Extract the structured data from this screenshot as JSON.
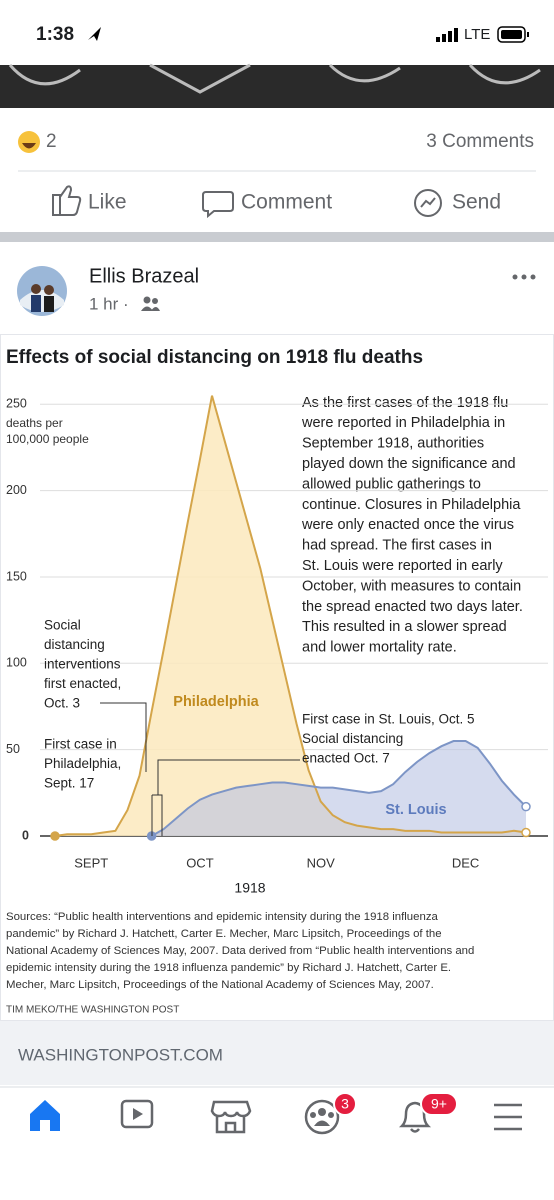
{
  "status_bar": {
    "time": "1:38",
    "network": "LTE"
  },
  "reactions": {
    "count": 2,
    "comments": "3 Comments"
  },
  "actions": [
    "Like",
    "Comment",
    "Send"
  ],
  "post": {
    "author": "Ellis Brazeal",
    "time": "1 hr ·"
  },
  "chart_data": {
    "type": "area",
    "title": "Effects of social distancing on 1918 flu deaths",
    "y_label": [
      "deaths per",
      "100,000 people"
    ],
    "description": [
      "As the first cases of the 1918 flu",
      "were reported in Philadelphia in",
      "September 1918, authorities",
      "played down the significance and",
      "allowed public gatherings to",
      "continue. Closures in Philadelphia",
      "were only enacted once the virus",
      "had spread. The first cases in",
      "St. Louis were reported in early",
      "October, with measures to contain",
      "the spread enacted two days later.",
      "This resulted in a slower spread",
      "and lower mortality rate."
    ],
    "annotations": [
      [
        "Social",
        "distancing",
        "interventions",
        "first enacted,",
        "Oct. 3"
      ],
      [
        "First case in",
        "Philadelphia,",
        "Sept. 17"
      ],
      [
        "First case in St. Louis, Oct. 5",
        "Social distancing",
        "enacted Oct. 7"
      ]
    ],
    "x_label": "1918",
    "categories": [
      null,
      null,
      null,
      "SEPT",
      null,
      null,
      null,
      null,
      null,
      null,
      null,
      null,
      "OCT",
      null,
      null,
      null,
      null,
      null,
      null,
      null,
      null,
      null,
      "NOV",
      null,
      null,
      null,
      null,
      null,
      null,
      null,
      null,
      null,
      null,
      null,
      "DEC",
      null,
      null,
      null,
      null,
      null
    ],
    "series": [
      {
        "name": "Philadelphia",
        "color": "#d4a54a",
        "fill": "#fbe9bd",
        "values": [
          0,
          1,
          1,
          1,
          2,
          3,
          15,
          35,
          72,
          108,
          145,
          182,
          218,
          255,
          230,
          205,
          180,
          155,
          125,
          95,
          65,
          38,
          20,
          12,
          8,
          6,
          5,
          4,
          4,
          3,
          3,
          3,
          2,
          2,
          2,
          2,
          2,
          2,
          3,
          2
        ]
      },
      {
        "name": "St. Louis",
        "color": "#7d95c6",
        "fill": "#b9c3e2",
        "values": [
          null,
          null,
          null,
          null,
          null,
          null,
          null,
          null,
          0,
          4,
          10,
          16,
          21,
          24,
          26,
          28,
          29,
          30,
          31,
          31,
          30,
          29,
          28,
          28,
          27,
          26,
          25,
          26,
          30,
          37,
          43,
          48,
          52,
          55,
          55,
          51,
          42,
          32,
          24,
          17
        ]
      }
    ],
    "ylim": [
      0,
      260
    ],
    "yticks": [
      0,
      50,
      100,
      150,
      200,
      250
    ],
    "grid": true,
    "sources": [
      "Sources: “Public health interventions and epidemic intensity during the 1918 influenza",
      "pandemic” by Richard J. Hatchett, Carter E. Mecher, Marc Lipsitch, Proceedings of the",
      "National Academy of Sciences May, 2007. Data derived from “Public health interventions and",
      "epidemic intensity during the 1918 influenza pandemic” by Richard J. Hatchett, Carter E.",
      "Mecher, Marc Lipsitch, Proceedings of the National Academy of Sciences May, 2007."
    ],
    "credit": "TIM MEKO/THE WASHINGTON POST"
  },
  "link": {
    "domain": "WASHINGTONPOST.COM"
  },
  "nav": {
    "badges": [
      3,
      "9+"
    ]
  }
}
